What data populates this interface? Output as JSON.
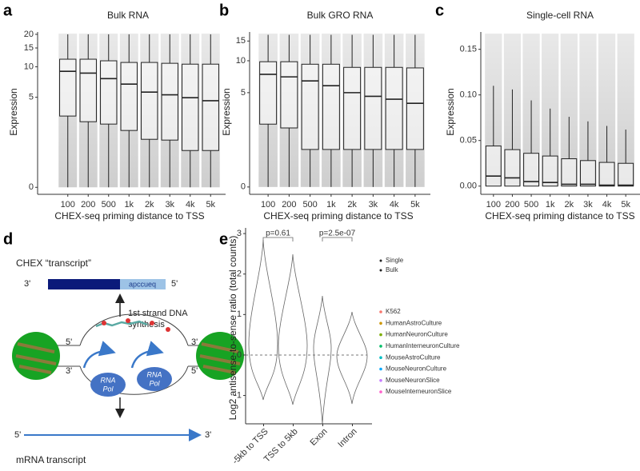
{
  "chart_data": [
    {
      "type": "box",
      "panel": "a",
      "title": "Bulk RNA",
      "x_label": "CHEX-seq priming distance to TSS",
      "y_label": "Expression",
      "categories": [
        "100",
        "200",
        "500",
        "1k",
        "2k",
        "3k",
        "4k",
        "5k"
      ],
      "scale": "log1p",
      "ylim": [
        -0.13,
        21
      ],
      "yticks": [
        0,
        5,
        10,
        15,
        20
      ],
      "series": [
        {
          "color": "#222222",
          "min": [
            0,
            0,
            0,
            0,
            0,
            0,
            0,
            0
          ],
          "q1": [
            3.13,
            2.69,
            2.52,
            2.1,
            1.6,
            1.56,
            1.08,
            1.08
          ],
          "median": [
            9.06,
            8.7,
            7.7,
            6.8,
            5.65,
            5.3,
            4.95,
            4.6
          ],
          "q3": [
            11.8,
            11.8,
            11.4,
            11,
            11,
            10.8,
            10.6,
            10.6
          ],
          "max": [
            20,
            20,
            20,
            20,
            20,
            20,
            20,
            20
          ]
        }
      ]
    },
    {
      "type": "box",
      "panel": "b",
      "title": "Bulk GRO RNA",
      "x_label": "CHEX-seq priming distance to TSS",
      "y_label": "Expression",
      "categories": [
        "100",
        "200",
        "500",
        "1k",
        "2k",
        "3k",
        "4k",
        "5k"
      ],
      "scale": "log1p",
      "ylim": [
        -0.13,
        18
      ],
      "yticks": [
        0,
        5,
        10,
        15
      ],
      "series": [
        {
          "color": "#222222",
          "min": [
            0,
            0,
            0,
            0,
            0,
            0,
            0,
            0
          ],
          "q1": [
            2.3,
            2.07,
            1.04,
            1.04,
            1.04,
            1.04,
            1.04,
            1.04
          ],
          "median": [
            7.5,
            7.1,
            6.5,
            5.85,
            5.0,
            4.6,
            4.3,
            3.9
          ],
          "q3": [
            9.8,
            9.8,
            9.3,
            9.3,
            8.7,
            8.7,
            8.7,
            8.6
          ],
          "max": [
            17,
            17,
            17,
            17,
            17,
            17,
            17,
            17
          ]
        }
      ]
    },
    {
      "type": "box",
      "panel": "c",
      "title": "Single-cell RNA",
      "x_label": "CHEX-seq priming distance to TSS",
      "y_label": "Expression",
      "categories": [
        "100",
        "200",
        "500",
        "1k",
        "2k",
        "3k",
        "4k",
        "5k"
      ],
      "scale": "linear",
      "ylim": [
        -0.009,
        0.169
      ],
      "yticks": [
        {
          "value": 0,
          "label": "0.00"
        },
        {
          "value": 0.05,
          "label": "0.05"
        },
        {
          "value": 0.1,
          "label": "0.10"
        },
        {
          "value": 0.15,
          "label": "0.15"
        }
      ],
      "series": [
        {
          "color": "#222222",
          "min": [
            0,
            0,
            0,
            0,
            0,
            0,
            0,
            0
          ],
          "q1": [
            0,
            0,
            0,
            0,
            0,
            0,
            0,
            0
          ],
          "median": [
            0.011,
            0.009,
            0.005,
            0.004,
            0.002,
            0.002,
            0.001,
            0.001
          ],
          "q3": [
            0.044,
            0.04,
            0.036,
            0.033,
            0.03,
            0.028,
            0.026,
            0.025
          ],
          "max": [
            0.11,
            0.106,
            0.094,
            0.085,
            0.076,
            0.071,
            0.066,
            0.062
          ]
        }
      ]
    },
    {
      "type": "violin",
      "panel": "e",
      "y_label": "Log2 antisense-to-sense ratio (total counts)",
      "categories": [
        "-5kb to TSS",
        "TSS to 5kb",
        "Exon",
        "Intron"
      ],
      "scale": "linear",
      "ylim": [
        -1.7,
        3.14
      ],
      "yticks": [
        -1,
        0,
        1,
        2,
        3
      ],
      "hline": 0,
      "annotations": [
        "p=0.61",
        "p=2.5e-07"
      ],
      "shape_legend": [
        "Single",
        "Bulk"
      ],
      "legend": [
        {
          "name": "K562",
          "color": "#F8766D"
        },
        {
          "name": "HumanAstroCulture",
          "color": "#CD9600"
        },
        {
          "name": "HumanNeuronCulture",
          "color": "#7CAE00"
        },
        {
          "name": "HumanInterneuronCulture",
          "color": "#00BE67"
        },
        {
          "name": "MouseAstroCulture",
          "color": "#00BFC4"
        },
        {
          "name": "MouseNeuronCulture",
          "color": "#00A9FF"
        },
        {
          "name": "MouseNeuronSlice",
          "color": "#C77CFF"
        },
        {
          "name": "MouseInterneuronSlice",
          "color": "#FF61CC"
        }
      ]
    }
  ],
  "diagram": {
    "panel": "d",
    "title": "CHEX “transcript”",
    "cdna_text": "apccueq",
    "end_3": "3'",
    "end_5": "5'",
    "step": [
      "1st strand DNA",
      "synthesis"
    ],
    "pol": [
      "RNA",
      "Pol"
    ],
    "mrna": "mRNA transcript"
  }
}
